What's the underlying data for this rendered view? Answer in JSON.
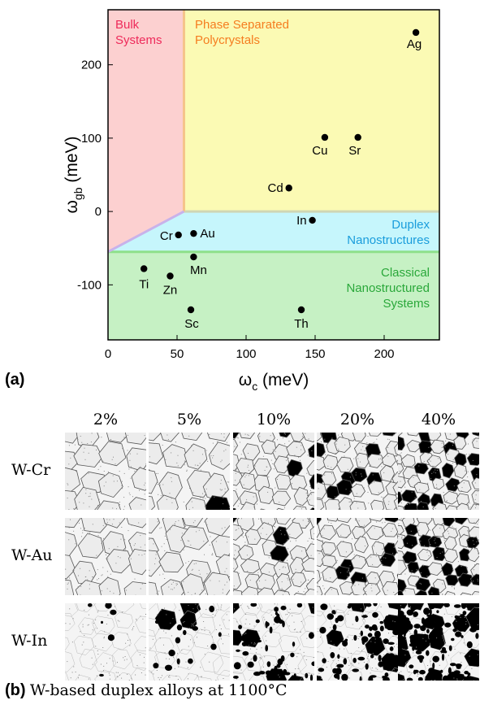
{
  "chart_data": {
    "type": "scatter",
    "xlabel": "ω",
    "xlabel_sub": "c",
    "xlabel_unit": " (meV)",
    "ylabel": "ω",
    "ylabel_sub": "gb",
    "ylabel_unit": " (meV)",
    "xlim": [
      0,
      240
    ],
    "ylim": [
      -175,
      275
    ],
    "x_ticks": [
      0,
      50,
      100,
      150,
      200
    ],
    "y_ticks": [
      -100,
      0,
      100,
      200
    ],
    "grid": false,
    "regions": [
      {
        "name": "Bulk Systems",
        "lines": [
          "Bulk",
          "Systems"
        ],
        "fill": "#fcd0d0",
        "text_color": "#ee2a5a"
      },
      {
        "name": "Phase Separated Polycrystals",
        "lines": [
          "Phase Separated",
          "Polycrystals"
        ],
        "fill": "#fbfab4",
        "text_color": "#f57d20"
      },
      {
        "name": "Duplex Nanostructures",
        "lines": [
          "Duplex",
          "Nanostructures"
        ],
        "fill": "#c6f6fc",
        "text_color": "#1a9ddc"
      },
      {
        "name": "Classical Nanostructured Systems",
        "lines": [
          "Classical",
          "Nanostructured",
          "Systems"
        ],
        "fill": "#c6f1c4",
        "text_color": "#2aa83a"
      }
    ],
    "points": [
      {
        "label": "Ag",
        "x": 223,
        "y": 244
      },
      {
        "label": "Cu",
        "x": 157,
        "y": 101
      },
      {
        "label": "Sr",
        "x": 181,
        "y": 101
      },
      {
        "label": "Cd",
        "x": 131,
        "y": 32
      },
      {
        "label": "In",
        "x": 148,
        "y": -12
      },
      {
        "label": "Cr",
        "x": 51,
        "y": -32
      },
      {
        "label": "Au",
        "x": 62,
        "y": -30
      },
      {
        "label": "Mn",
        "x": 62,
        "y": -62
      },
      {
        "label": "Ti",
        "x": 26,
        "y": -78
      },
      {
        "label": "Zn",
        "x": 45,
        "y": -88
      },
      {
        "label": "Sc",
        "x": 60,
        "y": -134
      },
      {
        "label": "Th",
        "x": 140,
        "y": -134
      }
    ]
  },
  "panel_a_label": "(a)",
  "panel_b": {
    "letter": "(b)",
    "caption": "W-based duplex alloys at 1100°C",
    "columns": [
      "2%",
      "5%",
      "10%",
      "20%",
      "40%"
    ],
    "rows": [
      "W-Cr",
      "W-Au",
      "W-In"
    ]
  }
}
